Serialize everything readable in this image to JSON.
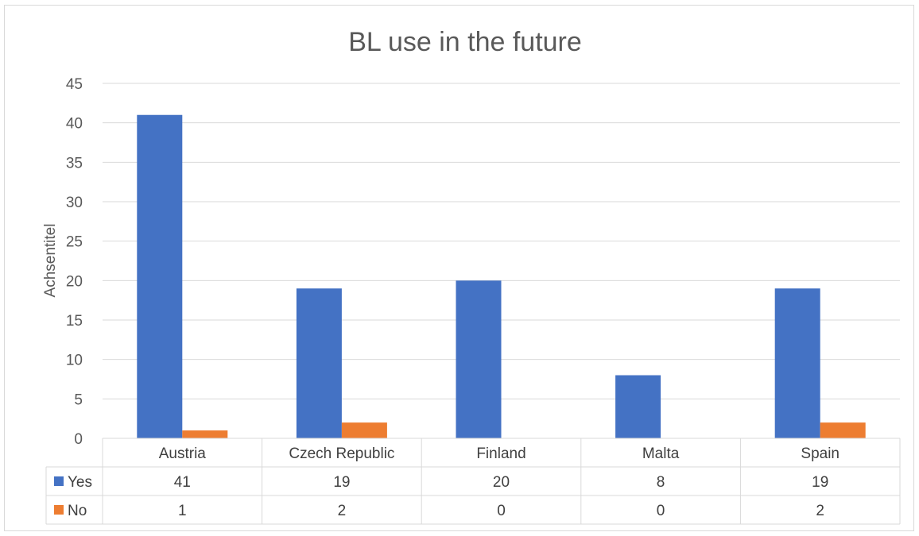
{
  "chart_data": {
    "type": "bar",
    "title": "BL use in the future",
    "ylabel": "Achsentitel",
    "xlabel": "",
    "categories": [
      "Austria",
      "Czech Republic",
      "Finland",
      "Malta",
      "Spain"
    ],
    "series": [
      {
        "name": "Yes",
        "color": "#4472C4",
        "values": [
          41,
          19,
          20,
          8,
          19
        ]
      },
      {
        "name": "No",
        "color": "#ED7D31",
        "values": [
          1,
          2,
          0,
          0,
          2
        ]
      }
    ],
    "ylim": [
      0,
      45
    ],
    "yticks": [
      0,
      5,
      10,
      15,
      20,
      25,
      30,
      35,
      40,
      45
    ],
    "grid": true,
    "legend": "data table below chart"
  }
}
